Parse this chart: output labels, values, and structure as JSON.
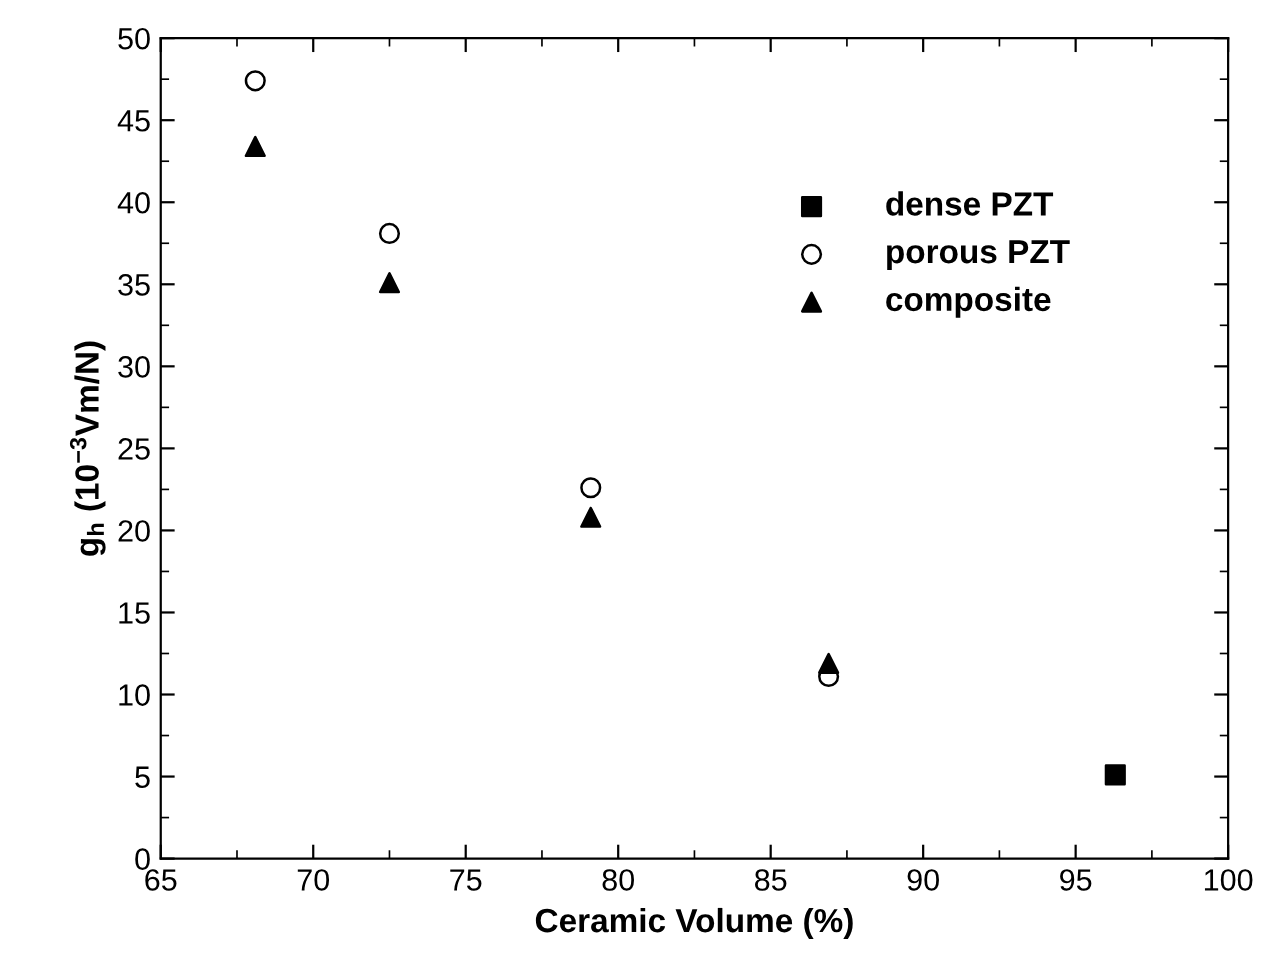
{
  "chart_data": {
    "type": "scatter",
    "xlabel": "Ceramic Volume (%)",
    "ylabel": "g$_{h}$ (10$^{−3}$Vm/N)",
    "xlim": [
      65,
      100
    ],
    "xticks": [
      65,
      70,
      75,
      80,
      85,
      90,
      95,
      100
    ],
    "ylim": [
      0,
      50
    ],
    "yticks": [
      0,
      5,
      10,
      15,
      20,
      25,
      30,
      35,
      40,
      45,
      50
    ],
    "grid": false,
    "legend": "top right",
    "series": [
      {
        "name": "dense PZT",
        "color": "#000000",
        "marker": "square",
        "x": [
          96.3
        ],
        "values": [
          5.1
        ]
      },
      {
        "name": "porous PZT",
        "color": "#000000",
        "marker": "circle",
        "x": [
          68.1,
          72.5,
          79.1,
          86.9
        ],
        "values": [
          47.4,
          38.1,
          22.6,
          11.1
        ]
      },
      {
        "name": "composite",
        "color": "#000000",
        "marker": "triangle",
        "x": [
          68.1,
          72.5,
          79.1,
          86.9
        ],
        "values": [
          43.4,
          35.1,
          20.8,
          11.9
        ]
      }
    ]
  }
}
